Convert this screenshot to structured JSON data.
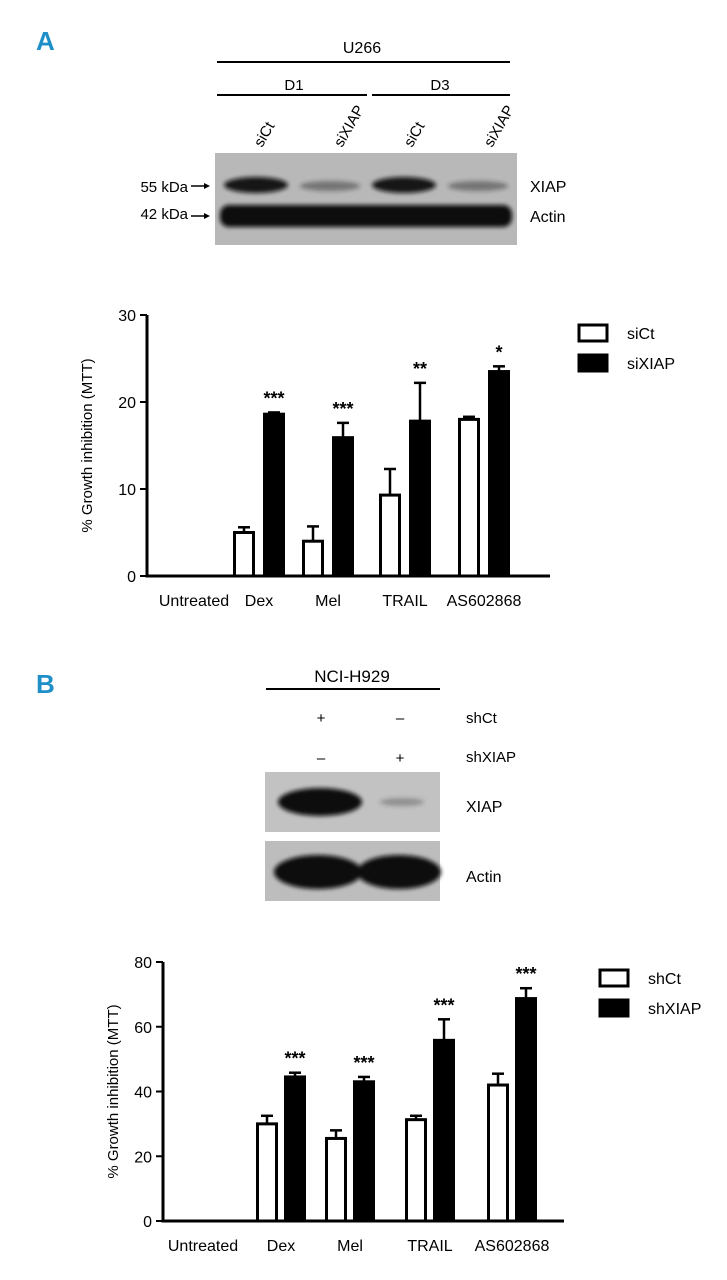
{
  "panel_a": {
    "letter": "A",
    "blot": {
      "cell_line": "U266",
      "groups": [
        {
          "label": "D1"
        },
        {
          "label": "D3"
        }
      ],
      "lanes": [
        "siCt",
        "siXIAP",
        "siCt",
        "siXIAP"
      ],
      "markers": [
        "55 kDa",
        "42 kDa"
      ],
      "bands": [
        {
          "label": "XIAP",
          "intensities": [
            0.95,
            0.45,
            0.95,
            0.45
          ]
        },
        {
          "label": "Actin",
          "intensities": [
            1.0,
            1.0,
            1.0,
            1.0
          ]
        }
      ]
    }
  },
  "panel_b": {
    "letter": "B",
    "blot": {
      "cell_line": "NCI-H929",
      "rows": [
        {
          "label": "shCt",
          "values": [
            "+",
            "–"
          ]
        },
        {
          "label": "shXIAP",
          "values": [
            "–",
            "+"
          ]
        }
      ],
      "bands": [
        {
          "label": "XIAP",
          "intensities": [
            1.0,
            0.22
          ]
        },
        {
          "label": "Actin",
          "intensities": [
            1.0,
            1.0
          ]
        }
      ]
    }
  },
  "chart_data": [
    {
      "type": "bar",
      "ylabel": "% Growth inhibition (MTT)",
      "ylim": [
        0,
        30
      ],
      "yticks": [
        0,
        10,
        20,
        30
      ],
      "categories": [
        "Untreated",
        "Dex",
        "Mel",
        "TRAIL",
        "AS602868"
      ],
      "series": [
        {
          "name": "siCt",
          "values": [
            0,
            5.0,
            4.0,
            9.3,
            18.0
          ],
          "errors": [
            0,
            0.6,
            1.7,
            3.0,
            0.3
          ],
          "fill": "#ffffff"
        },
        {
          "name": "siXIAP",
          "values": [
            0,
            18.6,
            15.9,
            17.8,
            23.5
          ],
          "errors": [
            0,
            0.2,
            1.7,
            4.4,
            0.6
          ],
          "fill": "#000000"
        }
      ],
      "significance": [
        "",
        "***",
        "***",
        "**",
        "*"
      ],
      "legend": "top-right"
    },
    {
      "type": "bar",
      "ylabel": "% Growth inhibition (MTT)",
      "ylim": [
        0,
        80
      ],
      "yticks": [
        0,
        20,
        40,
        60,
        80
      ],
      "categories": [
        "Untreated",
        "Dex",
        "Mel",
        "TRAIL",
        "AS602868"
      ],
      "series": [
        {
          "name": "shCt",
          "values": [
            0,
            30.0,
            25.5,
            31.3,
            42.0
          ],
          "errors": [
            0,
            2.5,
            2.5,
            1.2,
            3.5
          ],
          "fill": "#ffffff"
        },
        {
          "name": "shXIAP",
          "values": [
            0,
            44.5,
            43.0,
            55.8,
            68.7
          ],
          "errors": [
            0,
            1.3,
            1.5,
            6.5,
            3.2
          ],
          "fill": "#000000"
        }
      ],
      "significance": [
        "",
        "***",
        "***",
        "***",
        "***"
      ],
      "legend": "top-right"
    }
  ]
}
